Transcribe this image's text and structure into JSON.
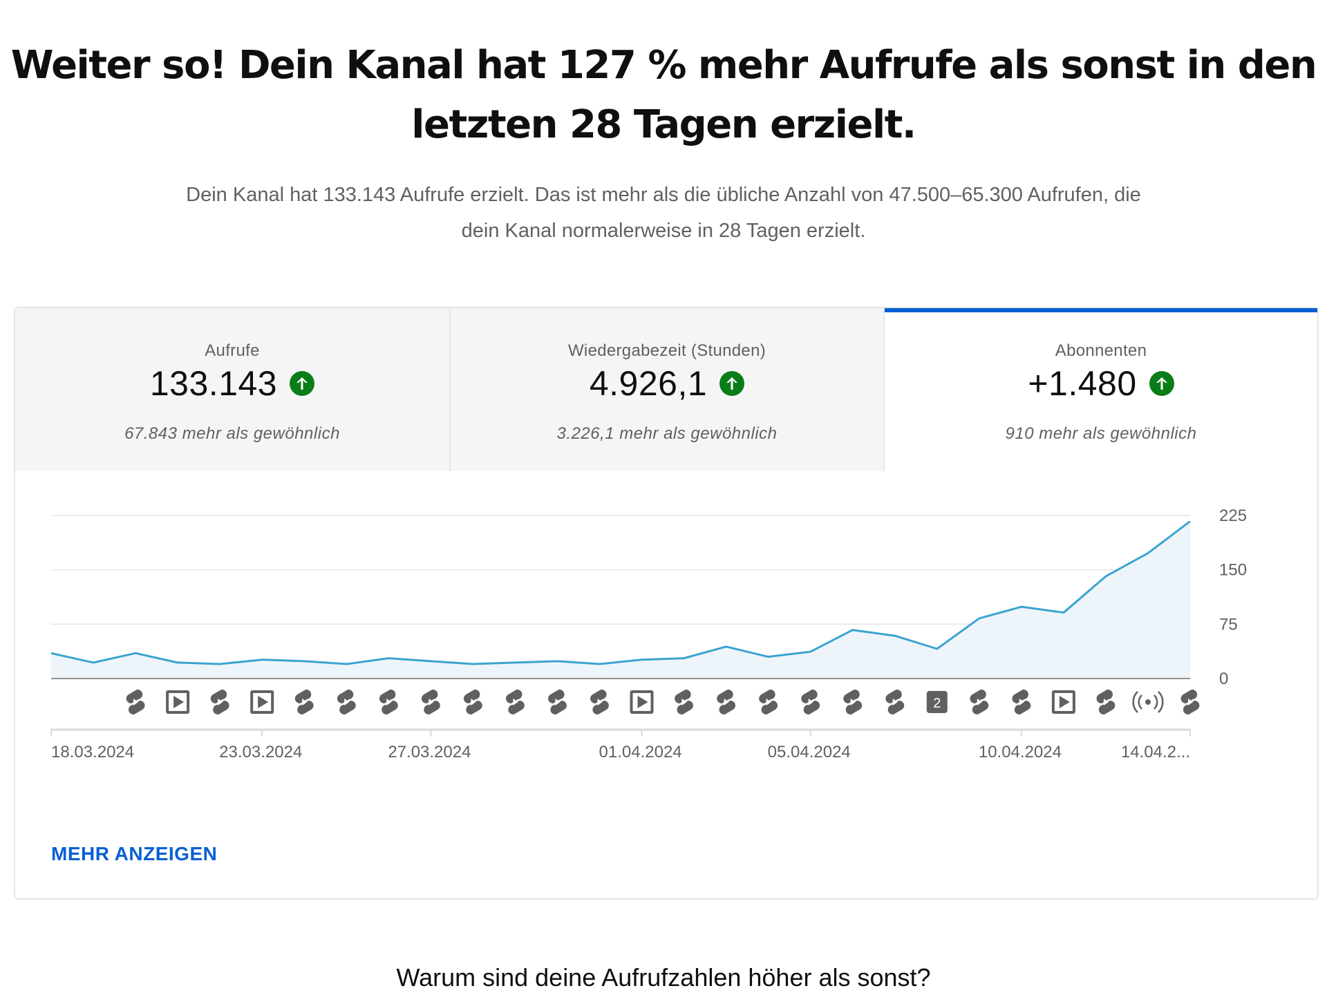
{
  "headline": {
    "line1": "Weiter so! Dein Kanal hat 127 % mehr Aufrufe als sonst in den",
    "line2": "letzten 28 Tagen erzielt."
  },
  "subline": {
    "line1": "Dein Kanal hat 133.143 Aufrufe erzielt. Das ist mehr als die übliche Anzahl von 47.500–65.300 Aufrufen, die",
    "line2": "dein Kanal normalerweise in 28 Tagen erzielt."
  },
  "tabs": [
    {
      "label": "Aufrufe",
      "value": "133.143",
      "note": "67.843 mehr als gewöhnlich",
      "active": false
    },
    {
      "label": "Wiedergabezeit (Stunden)",
      "value": "4.926,1",
      "note": "3.226,1 mehr als gewöhnlich",
      "active": false
    },
    {
      "label": "Abonnenten",
      "value": "+1.480",
      "note": "910 mehr als gewöhnlich",
      "active": true
    }
  ],
  "colors": {
    "accent": "#065fd4",
    "up_green": "#0b7d18",
    "line": "#3ba3d0",
    "area": "#eef5fa"
  },
  "chart_data": {
    "type": "area",
    "x": [
      "18.03.2024",
      "19.03.2024",
      "20.03.2024",
      "21.03.2024",
      "22.03.2024",
      "23.03.2024",
      "24.03.2024",
      "25.03.2024",
      "26.03.2024",
      "27.03.2024",
      "28.03.2024",
      "29.03.2024",
      "30.03.2024",
      "31.03.2024",
      "01.04.2024",
      "02.04.2024",
      "03.04.2024",
      "04.04.2024",
      "05.04.2024",
      "06.04.2024",
      "07.04.2024",
      "08.04.2024",
      "09.04.2024",
      "10.04.2024",
      "11.04.2024",
      "12.04.2024",
      "13.04.2024",
      "14.04.2024"
    ],
    "values": [
      35,
      22,
      35,
      22,
      20,
      26,
      24,
      20,
      28,
      24,
      20,
      22,
      24,
      20,
      26,
      28,
      44,
      30,
      37,
      67,
      59,
      41,
      83,
      99,
      91,
      141,
      173,
      217
    ],
    "y_ticks": [
      0,
      75,
      150,
      225
    ],
    "ylim": [
      0,
      225
    ],
    "x_tick_labels": [
      {
        "index": 0,
        "label": "18.03.2024"
      },
      {
        "index": 5,
        "label": "23.03.2024"
      },
      {
        "index": 9,
        "label": "27.03.2024"
      },
      {
        "index": 14,
        "label": "01.04.2024"
      },
      {
        "index": 18,
        "label": "05.04.2024"
      },
      {
        "index": 23,
        "label": "10.04.2024"
      },
      {
        "index": 27,
        "label": "14.04.2..."
      }
    ],
    "grid": true,
    "markers": [
      {
        "index": 2,
        "icon": "shorts-icon"
      },
      {
        "index": 3,
        "icon": "video-icon"
      },
      {
        "index": 4,
        "icon": "shorts-icon"
      },
      {
        "index": 5,
        "icon": "video-icon"
      },
      {
        "index": 6,
        "icon": "shorts-icon"
      },
      {
        "index": 7,
        "icon": "shorts-icon"
      },
      {
        "index": 8,
        "icon": "shorts-icon"
      },
      {
        "index": 9,
        "icon": "shorts-icon"
      },
      {
        "index": 10,
        "icon": "shorts-icon"
      },
      {
        "index": 11,
        "icon": "shorts-icon"
      },
      {
        "index": 12,
        "icon": "shorts-icon"
      },
      {
        "index": 13,
        "icon": "shorts-icon"
      },
      {
        "index": 14,
        "icon": "video-icon"
      },
      {
        "index": 15,
        "icon": "shorts-icon"
      },
      {
        "index": 16,
        "icon": "shorts-icon"
      },
      {
        "index": 17,
        "icon": "shorts-icon"
      },
      {
        "index": 18,
        "icon": "shorts-icon"
      },
      {
        "index": 19,
        "icon": "shorts-icon"
      },
      {
        "index": 20,
        "icon": "shorts-icon"
      },
      {
        "index": 21,
        "icon": "count-badge-icon",
        "label": "2"
      },
      {
        "index": 22,
        "icon": "shorts-icon"
      },
      {
        "index": 23,
        "icon": "shorts-icon"
      },
      {
        "index": 24,
        "icon": "video-icon"
      },
      {
        "index": 25,
        "icon": "shorts-icon"
      },
      {
        "index": 26,
        "icon": "live-icon"
      },
      {
        "index": 27,
        "icon": "shorts-icon"
      }
    ]
  },
  "more_link": "MEHR ANZEIGEN",
  "bottom_question": "Warum sind deine Aufrufzahlen höher als sonst?"
}
